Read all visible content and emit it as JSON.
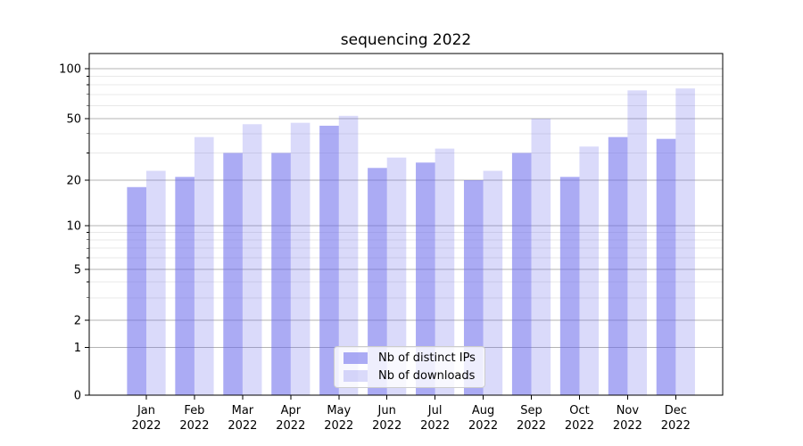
{
  "title": "sequencing 2022",
  "chart_data": {
    "type": "bar",
    "title": "sequencing 2022",
    "categories": [
      "Jan",
      "Feb",
      "Mar",
      "Apr",
      "May",
      "Jun",
      "Jul",
      "Aug",
      "Sep",
      "Oct",
      "Nov",
      "Dec"
    ],
    "category_year": "2022",
    "series": [
      {
        "name": "Nb of distinct IPs",
        "color": "rgba(102,102,235,0.55)",
        "values": [
          18,
          21,
          30,
          30,
          45,
          24,
          26,
          20,
          30,
          21,
          38,
          37
        ]
      },
      {
        "name": "Nb of downloads",
        "color": "rgba(102,102,235,0.24)",
        "values": [
          23,
          38,
          46,
          47,
          52,
          28,
          32,
          23,
          50,
          33,
          74,
          76
        ]
      }
    ],
    "yscale": "symlog",
    "y_major_ticks": [
      0,
      1,
      2,
      5,
      10,
      20,
      50,
      100
    ],
    "y_minor_ticks": [
      3,
      4,
      6,
      7,
      8,
      9,
      30,
      40,
      60,
      70,
      80,
      90
    ],
    "ylim": [
      0,
      125
    ],
    "xlabel": "",
    "ylabel": "",
    "grid": true,
    "legend_position": "lower center",
    "colors": {
      "bar_base": "#6666eb",
      "grid_major": "#b3b3b3",
      "grid_minor": "#e8e8e8",
      "axis": "#000000"
    }
  }
}
